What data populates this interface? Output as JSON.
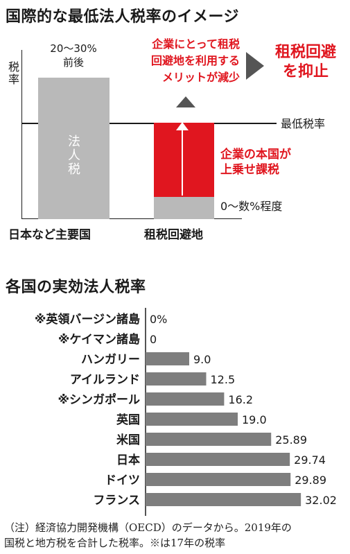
{
  "top": {
    "title": "国際的な最低法人税率のイメージ",
    "y_axis_label": "税率",
    "left": {
      "range": "20〜30%",
      "range_suffix": "前後",
      "body_label": "法人税",
      "category": "日本など主要国"
    },
    "right": {
      "category": "租税回避地",
      "bottom_label": "0〜数%程度",
      "red_label_line1": "企業の本国が",
      "red_label_line2": "上乗せ課税"
    },
    "min_rate_label": "最低税率",
    "merit_line1": "企業にとって租税",
    "merit_line2": "回避地を利用する",
    "merit_line3": "メリットが減少",
    "suppress_line1": "租税回避",
    "suppress_line2": "を抑止"
  },
  "chart_data": {
    "type": "bar",
    "title": "各国の実効法人税率",
    "categories": [
      "※英領バージン諸島",
      "※ケイマン諸島",
      "ハンガリー",
      "アイルランド",
      "※シンガポール",
      "英国",
      "米国",
      "日本",
      "ドイツ",
      "フランス"
    ],
    "values": [
      0,
      0,
      9.0,
      12.5,
      16.2,
      19.0,
      25.89,
      29.74,
      29.89,
      32.02
    ],
    "value_labels": [
      "0%",
      "0",
      "9.0",
      "12.5",
      "16.2",
      "19.0",
      "25.89",
      "29.74",
      "29.89",
      "32.02"
    ],
    "orientation": "horizontal",
    "bar_color": "#7e7e7e"
  },
  "note": {
    "line1": "（注）経済協力開発機構（OECD）のデータから。2019年の",
    "line2": "国税と地方税を合計した税率。※は17年の税率"
  },
  "colors": {
    "accent_red": "#e0161f",
    "bar_gray": "#7e7e7e",
    "light_gray": "#b9b9b9"
  }
}
